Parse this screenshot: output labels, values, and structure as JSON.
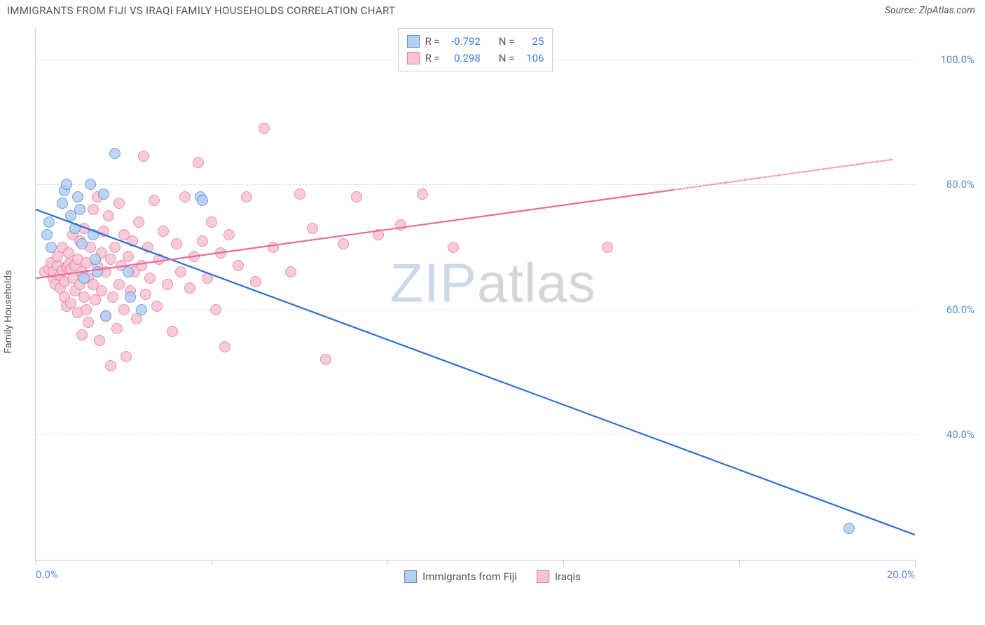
{
  "title": "IMMIGRANTS FROM FIJI VS IRAQI FAMILY HOUSEHOLDS CORRELATION CHART",
  "source_prefix": "Source: ",
  "source_name": "ZipAtlas.com",
  "y_axis_label": "Family Households",
  "watermark": {
    "part1": "ZIP",
    "part2": "atlas"
  },
  "chart": {
    "type": "scatter-with-trend",
    "xlim": [
      0,
      20
    ],
    "ylim": [
      20,
      105
    ],
    "y_ticks": [
      40,
      60,
      80,
      100
    ],
    "y_tick_labels": [
      "40.0%",
      "60.0%",
      "80.0%",
      "100.0%"
    ],
    "x_ticks": [
      0,
      4,
      8,
      12,
      16,
      20
    ],
    "x_tick_labels": [
      "0.0%",
      "",
      "",
      "",
      "",
      "20.0%"
    ],
    "background_color": "#ffffff",
    "grid_color": "#dddddd",
    "axis_color": "#cccccc",
    "point_radius": 8,
    "series": [
      {
        "name": "Immigrants from Fiji",
        "fill": "#b3cff2",
        "stroke": "#5b8dd6",
        "line_color": "#2f6fd0",
        "r_value": "-0.792",
        "n_value": "25",
        "trend": {
          "x1": 0,
          "y1": 76,
          "x2": 20,
          "y2": 24,
          "dash_from_x": null
        },
        "points": [
          [
            0.25,
            72
          ],
          [
            0.3,
            74
          ],
          [
            0.35,
            70
          ],
          [
            0.6,
            77
          ],
          [
            0.65,
            79
          ],
          [
            0.7,
            80
          ],
          [
            0.8,
            75
          ],
          [
            0.9,
            73
          ],
          [
            0.95,
            78
          ],
          [
            1.0,
            76
          ],
          [
            1.05,
            70.5
          ],
          [
            1.1,
            65
          ],
          [
            1.25,
            80
          ],
          [
            1.3,
            72
          ],
          [
            1.35,
            68
          ],
          [
            1.4,
            66
          ],
          [
            1.55,
            78.5
          ],
          [
            1.6,
            59
          ],
          [
            1.8,
            85
          ],
          [
            2.1,
            66
          ],
          [
            2.15,
            62
          ],
          [
            2.4,
            60
          ],
          [
            3.75,
            78
          ],
          [
            3.8,
            77.5
          ],
          [
            18.5,
            25
          ]
        ]
      },
      {
        "name": "Iraqis",
        "fill": "#f6c4d3",
        "stroke": "#e97aa2",
        "line_color": "#e86b95",
        "r_value": "0.298",
        "n_value": "106",
        "trend": {
          "x1": 0,
          "y1": 65,
          "x2": 19.5,
          "y2": 84,
          "dash_from_x": 14.5
        },
        "points": [
          [
            0.2,
            66
          ],
          [
            0.3,
            66.5
          ],
          [
            0.35,
            67.5
          ],
          [
            0.4,
            65
          ],
          [
            0.4,
            66
          ],
          [
            0.45,
            64
          ],
          [
            0.5,
            67
          ],
          [
            0.5,
            68.5
          ],
          [
            0.55,
            63.5
          ],
          [
            0.55,
            65.5
          ],
          [
            0.6,
            66.2
          ],
          [
            0.6,
            70
          ],
          [
            0.65,
            62
          ],
          [
            0.65,
            64.5
          ],
          [
            0.7,
            66.8
          ],
          [
            0.7,
            60.5
          ],
          [
            0.75,
            67.3
          ],
          [
            0.75,
            69
          ],
          [
            0.8,
            61
          ],
          [
            0.8,
            66.5
          ],
          [
            0.85,
            65
          ],
          [
            0.85,
            72
          ],
          [
            0.9,
            63
          ],
          [
            0.9,
            67
          ],
          [
            0.95,
            59.5
          ],
          [
            0.95,
            68
          ],
          [
            1.0,
            64
          ],
          [
            1.0,
            71
          ],
          [
            1.05,
            56
          ],
          [
            1.05,
            66
          ],
          [
            1.1,
            62
          ],
          [
            1.1,
            73
          ],
          [
            1.15,
            60
          ],
          [
            1.15,
            67.5
          ],
          [
            1.2,
            58
          ],
          [
            1.2,
            65
          ],
          [
            1.25,
            70
          ],
          [
            1.3,
            64
          ],
          [
            1.3,
            76
          ],
          [
            1.35,
            61.5
          ],
          [
            1.4,
            78
          ],
          [
            1.4,
            67
          ],
          [
            1.45,
            55
          ],
          [
            1.5,
            69
          ],
          [
            1.5,
            63
          ],
          [
            1.55,
            72.5
          ],
          [
            1.6,
            59
          ],
          [
            1.6,
            66
          ],
          [
            1.65,
            75
          ],
          [
            1.7,
            51
          ],
          [
            1.7,
            68
          ],
          [
            1.75,
            62
          ],
          [
            1.8,
            70
          ],
          [
            1.85,
            57
          ],
          [
            1.9,
            77
          ],
          [
            1.9,
            64
          ],
          [
            1.95,
            67
          ],
          [
            2.0,
            60
          ],
          [
            2.0,
            72
          ],
          [
            2.05,
            52.5
          ],
          [
            2.1,
            68.5
          ],
          [
            2.15,
            63
          ],
          [
            2.2,
            71
          ],
          [
            2.25,
            66
          ],
          [
            2.3,
            58.5
          ],
          [
            2.35,
            74
          ],
          [
            2.4,
            67
          ],
          [
            2.45,
            84.5
          ],
          [
            2.5,
            62.5
          ],
          [
            2.55,
            70
          ],
          [
            2.6,
            65
          ],
          [
            2.7,
            77.5
          ],
          [
            2.75,
            60.5
          ],
          [
            2.8,
            68
          ],
          [
            2.9,
            72.5
          ],
          [
            3.0,
            64
          ],
          [
            3.1,
            56.5
          ],
          [
            3.2,
            70.5
          ],
          [
            3.3,
            66
          ],
          [
            3.4,
            78
          ],
          [
            3.5,
            63.5
          ],
          [
            3.6,
            68.5
          ],
          [
            3.7,
            83.5
          ],
          [
            3.8,
            71
          ],
          [
            3.9,
            65
          ],
          [
            4.0,
            74
          ],
          [
            4.1,
            60
          ],
          [
            4.2,
            69
          ],
          [
            4.3,
            54
          ],
          [
            4.4,
            72
          ],
          [
            4.6,
            67
          ],
          [
            4.8,
            78
          ],
          [
            5.0,
            64.5
          ],
          [
            5.2,
            89
          ],
          [
            5.4,
            70
          ],
          [
            5.8,
            66
          ],
          [
            6.0,
            78.5
          ],
          [
            6.3,
            73
          ],
          [
            6.6,
            52
          ],
          [
            7.0,
            70.5
          ],
          [
            7.3,
            78
          ],
          [
            7.8,
            72
          ],
          [
            8.3,
            73.5
          ],
          [
            8.8,
            78.5
          ],
          [
            9.5,
            70
          ],
          [
            13.0,
            70
          ]
        ]
      }
    ]
  },
  "legend_bottom": [
    {
      "label": "Immigrants from Fiji",
      "fill": "#b3cff2",
      "stroke": "#5b8dd6"
    },
    {
      "label": "Iraqis",
      "fill": "#f6c4d3",
      "stroke": "#e97aa2"
    }
  ]
}
